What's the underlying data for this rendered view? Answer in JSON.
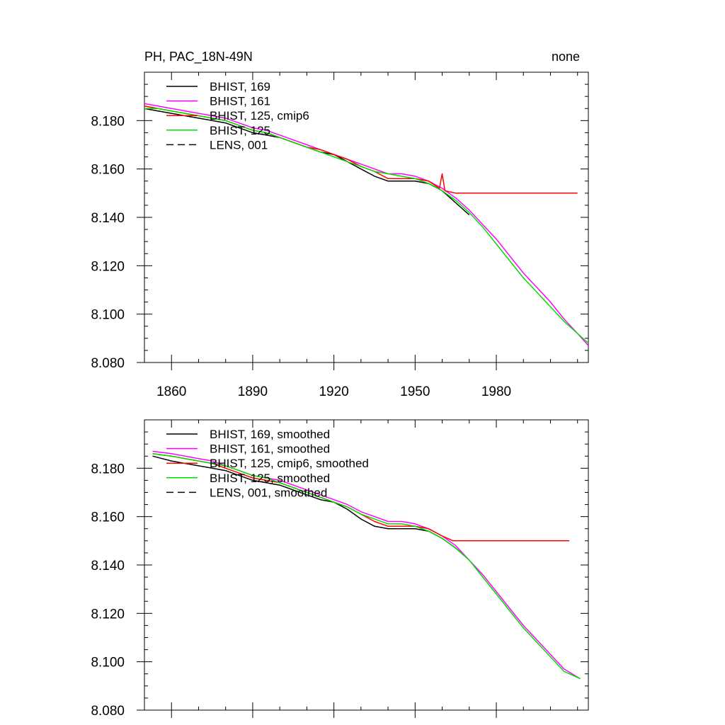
{
  "chart_data": [
    {
      "type": "line",
      "title_left": "PH, PAC_18N-49N",
      "title_right": "none",
      "xlim": [
        1850,
        2014
      ],
      "ylim": [
        8.08,
        8.2
      ],
      "xticks": [
        1860,
        1890,
        1920,
        1950,
        1980
      ],
      "xtick_labels": [
        "1860",
        "1890",
        "1920",
        "1950",
        "1980"
      ],
      "yticks": [
        8.08,
        8.1,
        8.12,
        8.14,
        8.16,
        8.18
      ],
      "ytick_labels": [
        "8.080",
        "8.100",
        "8.120",
        "8.140",
        "8.160",
        "8.180"
      ],
      "legend_position": "top-left",
      "series": [
        {
          "name": "BHIST, 169",
          "color": "#000000",
          "dash": "solid",
          "x": [
            1850,
            1855,
            1860,
            1865,
            1870,
            1875,
            1880,
            1885,
            1890,
            1895,
            1900,
            1905,
            1910,
            1915,
            1920,
            1925,
            1930,
            1935,
            1940,
            1945,
            1950,
            1955,
            1960,
            1965,
            1970
          ],
          "y": [
            8.185,
            8.184,
            8.183,
            8.182,
            8.181,
            8.18,
            8.179,
            8.177,
            8.175,
            8.174,
            8.173,
            8.171,
            8.169,
            8.167,
            8.166,
            8.163,
            8.16,
            8.157,
            8.155,
            8.155,
            8.155,
            8.154,
            8.151,
            8.146,
            8.141
          ]
        },
        {
          "name": "BHIST, 161",
          "color": "#ff00ff",
          "dash": "solid",
          "x": [
            1850,
            1855,
            1860,
            1865,
            1870,
            1875,
            1880,
            1885,
            1890,
            1895,
            1900,
            1905,
            1910,
            1915,
            1920,
            1925,
            1930,
            1935,
            1940,
            1945,
            1950,
            1955,
            1960,
            1965,
            1970,
            1975,
            1980,
            1985,
            1990,
            1995,
            2000,
            2005,
            2010,
            2014
          ],
          "y": [
            8.187,
            8.186,
            8.185,
            8.184,
            8.183,
            8.182,
            8.181,
            8.179,
            8.177,
            8.176,
            8.174,
            8.172,
            8.17,
            8.168,
            8.166,
            8.164,
            8.162,
            8.16,
            8.158,
            8.158,
            8.157,
            8.155,
            8.152,
            8.148,
            8.143,
            8.137,
            8.131,
            8.124,
            8.117,
            8.111,
            8.105,
            8.098,
            8.092,
            8.087
          ]
        },
        {
          "name": "BHIST, 125, cmip6",
          "color": "#ff0000",
          "dash": "solid",
          "x": [
            1850,
            1855,
            1860,
            1865,
            1870,
            1875,
            1880,
            1885,
            1890,
            1895,
            1900,
            1905,
            1910,
            1915,
            1920,
            1925,
            1930,
            1935,
            1940,
            1945,
            1950,
            1955,
            1959,
            1960,
            1961,
            1965,
            1970,
            1980,
            1990,
            2000,
            2010
          ],
          "y": [
            8.186,
            8.185,
            8.184,
            8.183,
            8.182,
            8.181,
            8.18,
            8.178,
            8.176,
            8.175,
            8.173,
            8.171,
            8.169,
            8.168,
            8.166,
            8.164,
            8.161,
            8.159,
            8.156,
            8.156,
            8.156,
            8.155,
            8.152,
            8.158,
            8.151,
            8.15,
            8.15,
            8.15,
            8.15,
            8.15,
            8.15
          ]
        },
        {
          "name": "BHIST, 125",
          "color": "#00dd00",
          "dash": "solid",
          "x": [
            1850,
            1855,
            1860,
            1865,
            1870,
            1875,
            1880,
            1885,
            1890,
            1895,
            1900,
            1905,
            1910,
            1915,
            1920,
            1925,
            1930,
            1935,
            1940,
            1945,
            1950,
            1955,
            1960,
            1965,
            1970,
            1975,
            1980,
            1985,
            1990,
            1995,
            2000,
            2005,
            2010,
            2014
          ],
          "y": [
            8.185,
            8.185,
            8.184,
            8.183,
            8.182,
            8.181,
            8.18,
            8.178,
            8.176,
            8.175,
            8.173,
            8.171,
            8.169,
            8.167,
            8.165,
            8.163,
            8.161,
            8.159,
            8.158,
            8.157,
            8.156,
            8.154,
            8.151,
            8.147,
            8.142,
            8.136,
            8.129,
            8.122,
            8.115,
            8.109,
            8.103,
            8.097,
            8.092,
            8.088
          ]
        },
        {
          "name": "LENS, 001",
          "color": "#000000",
          "dash": "dashed",
          "x": [],
          "y": []
        }
      ]
    },
    {
      "type": "line",
      "xlim": [
        1850,
        2014
      ],
      "ylim": [
        8.08,
        8.2
      ],
      "xticks": [
        1860,
        1890,
        1920,
        1950,
        1980
      ],
      "yticks": [
        8.08,
        8.1,
        8.12,
        8.14,
        8.16,
        8.18
      ],
      "ytick_labels": [
        "8.080",
        "8.100",
        "8.120",
        "8.140",
        "8.160",
        "8.180"
      ],
      "legend_position": "top-left",
      "series": [
        {
          "name": "BHIST, 169, smoothed",
          "color": "#000000",
          "dash": "solid",
          "x": [
            1853,
            1860,
            1865,
            1870,
            1875,
            1880,
            1885,
            1890,
            1895,
            1900,
            1905,
            1910,
            1915,
            1920,
            1925,
            1930,
            1935,
            1940,
            1945,
            1950,
            1955,
            1960,
            1965,
            1968
          ],
          "y": [
            8.185,
            8.183,
            8.182,
            8.181,
            8.18,
            8.179,
            8.177,
            8.175,
            8.174,
            8.173,
            8.171,
            8.169,
            8.167,
            8.166,
            8.163,
            8.159,
            8.156,
            8.155,
            8.155,
            8.155,
            8.154,
            8.151,
            8.147,
            8.144
          ]
        },
        {
          "name": "BHIST, 161, smoothed",
          "color": "#ff00ff",
          "dash": "solid",
          "x": [
            1853,
            1860,
            1865,
            1870,
            1875,
            1880,
            1885,
            1890,
            1895,
            1900,
            1905,
            1910,
            1915,
            1920,
            1925,
            1930,
            1935,
            1940,
            1945,
            1950,
            1955,
            1960,
            1965,
            1970,
            1975,
            1980,
            1985,
            1990,
            1995,
            2000,
            2005,
            2011
          ],
          "y": [
            8.187,
            8.186,
            8.185,
            8.184,
            8.183,
            8.181,
            8.179,
            8.177,
            8.176,
            8.175,
            8.173,
            8.171,
            8.169,
            8.167,
            8.165,
            8.162,
            8.16,
            8.158,
            8.158,
            8.157,
            8.155,
            8.152,
            8.148,
            8.142,
            8.136,
            8.129,
            8.122,
            8.115,
            8.109,
            8.103,
            8.097,
            8.093
          ]
        },
        {
          "name": "BHIST, 125, cmip6, smoothed",
          "color": "#ff0000",
          "dash": "solid",
          "x": [
            1853,
            1860,
            1865,
            1870,
            1875,
            1880,
            1885,
            1890,
            1895,
            1900,
            1905,
            1910,
            1915,
            1920,
            1925,
            1930,
            1935,
            1940,
            1945,
            1950,
            1955,
            1960,
            1964,
            1970,
            1980,
            1990,
            2000,
            2007
          ],
          "y": [
            8.186,
            8.185,
            8.184,
            8.183,
            8.182,
            8.18,
            8.178,
            8.176,
            8.175,
            8.174,
            8.172,
            8.17,
            8.168,
            8.166,
            8.164,
            8.161,
            8.158,
            8.156,
            8.156,
            8.156,
            8.155,
            8.152,
            8.15,
            8.15,
            8.15,
            8.15,
            8.15,
            8.15
          ]
        },
        {
          "name": "BHIST, 125, smoothed",
          "color": "#00dd00",
          "dash": "solid",
          "x": [
            1853,
            1860,
            1865,
            1870,
            1875,
            1880,
            1885,
            1890,
            1895,
            1900,
            1905,
            1910,
            1915,
            1920,
            1925,
            1930,
            1935,
            1940,
            1945,
            1950,
            1955,
            1960,
            1965,
            1970,
            1975,
            1980,
            1985,
            1990,
            1995,
            2000,
            2005,
            2011
          ],
          "y": [
            8.186,
            8.185,
            8.184,
            8.183,
            8.182,
            8.181,
            8.179,
            8.177,
            8.176,
            8.174,
            8.172,
            8.17,
            8.168,
            8.166,
            8.164,
            8.161,
            8.159,
            8.157,
            8.157,
            8.156,
            8.154,
            8.151,
            8.147,
            8.142,
            8.135,
            8.128,
            8.121,
            8.114,
            8.108,
            8.102,
            8.096,
            8.093
          ]
        },
        {
          "name": "LENS, 001, smoothed",
          "color": "#000000",
          "dash": "dashed",
          "x": [],
          "y": []
        }
      ]
    }
  ]
}
